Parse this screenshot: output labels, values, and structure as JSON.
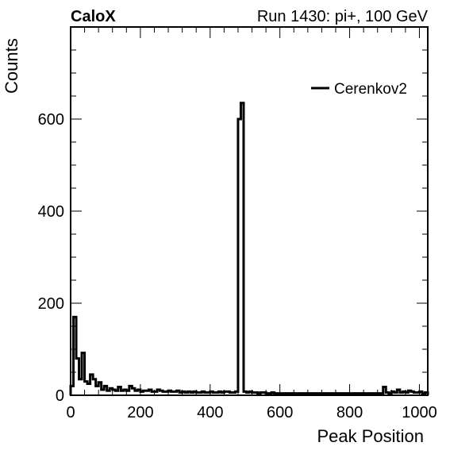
{
  "header": {
    "left": "CaloX",
    "right": "Run 1430: pi+, 100 GeV"
  },
  "chart_data": {
    "type": "line",
    "style": "step histogram",
    "xlabel": "Peak Position",
    "ylabel": "Counts",
    "xlim": [
      0,
      1024
    ],
    "ylim": [
      0,
      800
    ],
    "x_ticks": [
      0,
      200,
      400,
      600,
      800,
      1000
    ],
    "y_ticks": [
      0,
      200,
      400,
      600
    ],
    "grid": false,
    "legend_position": "top-right",
    "series": [
      {
        "name": "Cerenkov2",
        "color": "#000000",
        "bin_width": 8,
        "x_start": 0,
        "values": [
          20,
          170,
          80,
          35,
          92,
          30,
          25,
          45,
          35,
          20,
          28,
          12,
          20,
          10,
          15,
          12,
          10,
          18,
          10,
          12,
          10,
          20,
          15,
          10,
          12,
          8,
          10,
          10,
          12,
          8,
          8,
          12,
          10,
          8,
          8,
          10,
          8,
          8,
          10,
          6,
          8,
          6,
          8,
          6,
          8,
          6,
          6,
          8,
          6,
          6,
          8,
          6,
          6,
          8,
          6,
          8,
          8,
          6,
          6,
          8,
          600,
          635,
          8,
          6,
          8,
          6,
          6,
          4,
          6,
          6,
          4,
          4,
          6,
          4,
          4,
          4,
          4,
          4,
          4,
          4,
          4,
          4,
          4,
          4,
          4,
          4,
          4,
          4,
          4,
          4,
          4,
          4,
          4,
          4,
          4,
          4,
          4,
          4,
          4,
          4,
          4,
          4,
          4,
          4,
          4,
          4,
          4,
          4,
          4,
          4,
          4,
          4,
          18,
          6,
          4,
          8,
          6,
          12,
          6,
          8,
          6,
          10,
          8,
          6,
          6,
          8,
          4,
          6
        ]
      }
    ]
  }
}
